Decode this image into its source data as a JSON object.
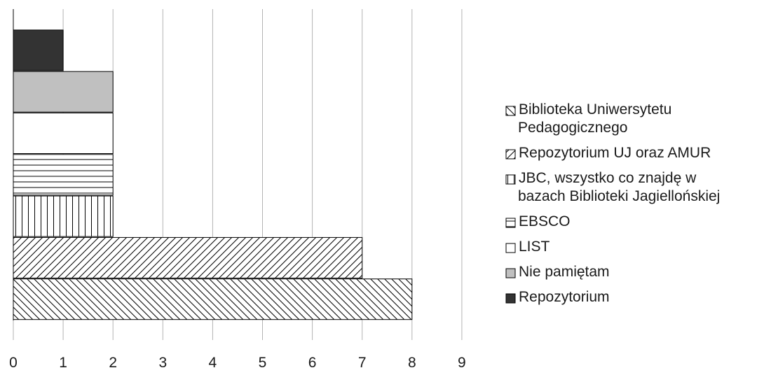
{
  "chart_data": {
    "type": "bar",
    "orientation": "horizontal",
    "grid": true,
    "legend_position": "right",
    "xlim": [
      0,
      9
    ],
    "x_ticks": [
      "0",
      "1",
      "2",
      "3",
      "4",
      "5",
      "6",
      "7",
      "8",
      "9"
    ],
    "series": [
      {
        "name": "Biblioteka Uniwersytetu Pedagogicznego",
        "legend_lines": [
          "Biblioteka Uniwersytetu",
          "Pedagogicznego"
        ],
        "value": 8,
        "pattern": "diagonal-down"
      },
      {
        "name": "Repozytorium UJ oraz AMUR",
        "legend_lines": [
          "Repozytorium UJ oraz AMUR"
        ],
        "value": 7,
        "pattern": "diagonal-up"
      },
      {
        "name": "JBC, wszystko co znajdę w bazach Biblioteki Jagiellońskiej",
        "legend_lines": [
          "JBC, wszystko co znajdę w",
          "bazach Biblioteki Jagiellońskiej"
        ],
        "value": 2,
        "pattern": "vertical"
      },
      {
        "name": "EBSCO",
        "legend_lines": [
          "EBSCO"
        ],
        "value": 2,
        "pattern": "horizontal"
      },
      {
        "name": "LIST",
        "legend_lines": [
          "LIST"
        ],
        "value": 2,
        "pattern": "none"
      },
      {
        "name": "Nie pamiętam",
        "legend_lines": [
          "Nie pamiętam"
        ],
        "value": 2,
        "pattern": "grey"
      },
      {
        "name": "Repozytorium",
        "legend_lines": [
          "Repozytorium"
        ],
        "value": 1,
        "pattern": "dark"
      }
    ],
    "colors": {
      "grey": "#c0c0c0",
      "dark": "#333333",
      "gridline": "#b3b3b3",
      "outline": "#000000"
    }
  }
}
